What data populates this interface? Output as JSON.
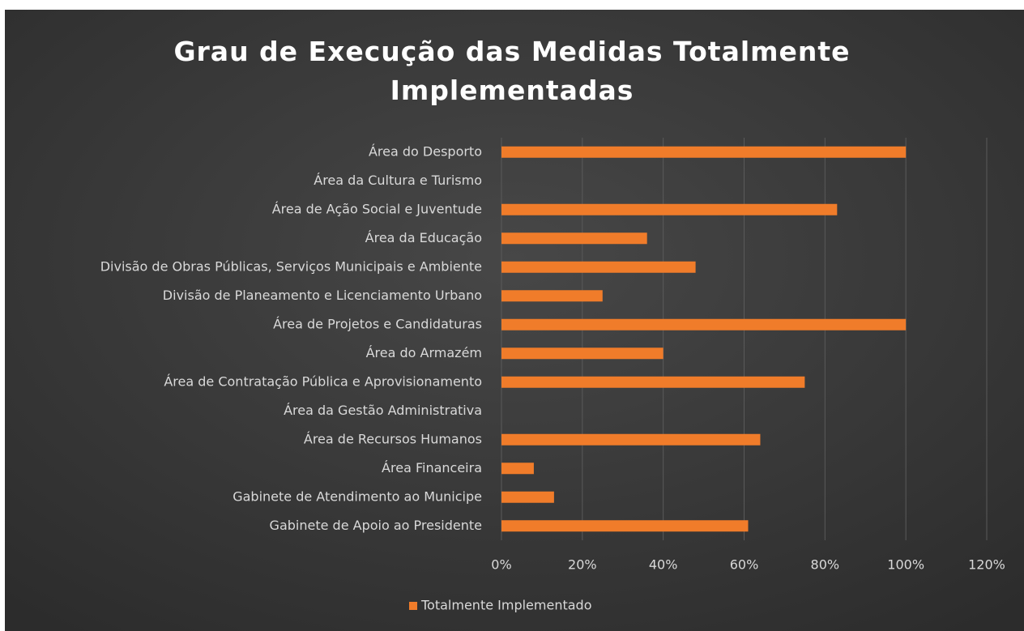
{
  "chart_data": {
    "type": "barh",
    "title": "Grau de Execução das Medidas Totalmente Implementadas",
    "categories": [
      "Área do Desporto",
      "Área da Cultura e Turismo",
      "Área de Ação Social e Juventude",
      "Área da Educação",
      "Divisão de Obras Públicas, Serviços Municipais e Ambiente",
      "Divisão de Planeamento e Licenciamento Urbano",
      "Área de Projetos e Candidaturas",
      "Área do Armazém",
      "Área de Contratação Pública e Aprovisionamento",
      "Área da Gestão Administrativa",
      "Área de Recursos Humanos",
      "Área Financeira",
      "Gabinete de Atendimento ao Municipe",
      "Gabinete de Apoio ao Presidente"
    ],
    "series": [
      {
        "name": "Totalmente Implementado",
        "color": "#f07c2a",
        "values": [
          100,
          0,
          83,
          36,
          48,
          25,
          100,
          40,
          75,
          0,
          64,
          8,
          13,
          61
        ]
      }
    ],
    "xlim": [
      0,
      120
    ],
    "xticks": [
      {
        "value": 0,
        "label": "0%"
      },
      {
        "value": 20,
        "label": "20%"
      },
      {
        "value": 40,
        "label": "40%"
      },
      {
        "value": 60,
        "label": "60%"
      },
      {
        "value": 80,
        "label": "80%"
      },
      {
        "value": 100,
        "label": "100%"
      },
      {
        "value": 120,
        "label": "120%"
      }
    ],
    "grid": true,
    "legend": "bottom"
  }
}
